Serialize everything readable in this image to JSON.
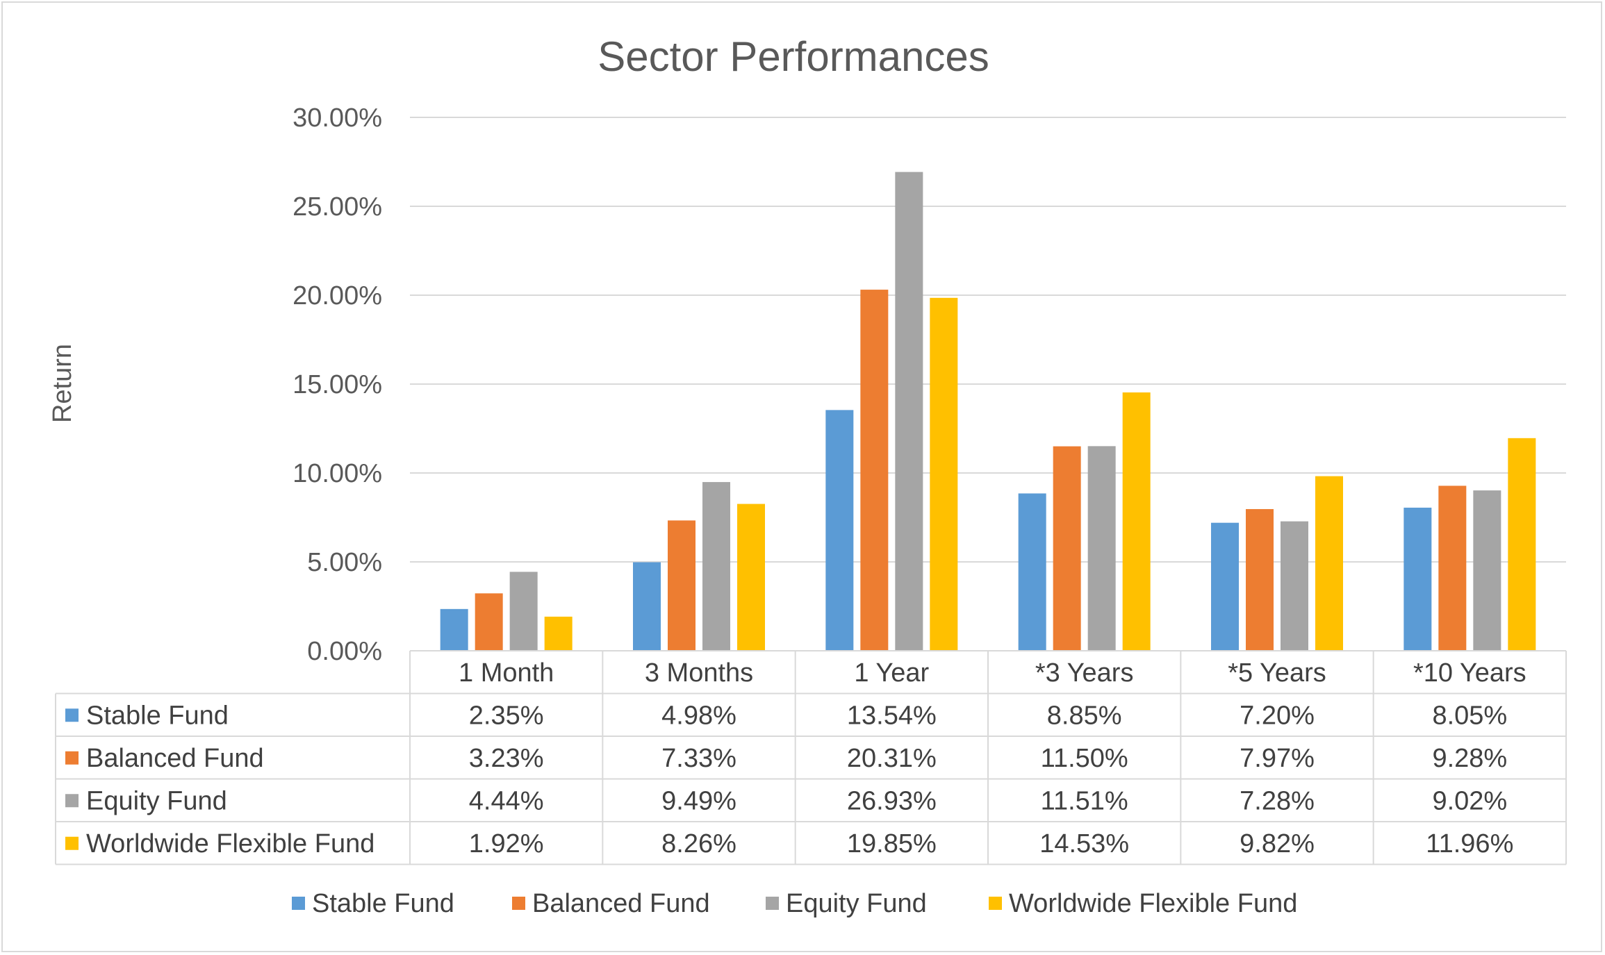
{
  "chart_data": {
    "type": "bar",
    "title": "Sector Performances",
    "xlabel": "",
    "ylabel": "Return",
    "ylim": [
      0,
      30
    ],
    "y_ticks": [
      "0.00%",
      "5.00%",
      "10.00%",
      "15.00%",
      "20.00%",
      "25.00%",
      "30.00%"
    ],
    "categories": [
      "1 Month",
      "3 Months",
      "1 Year",
      "*3 Years",
      "*5 Years",
      "*10 Years"
    ],
    "series": [
      {
        "name": "Stable Fund",
        "color": "#5b9bd5",
        "values": [
          2.35,
          4.98,
          13.54,
          8.85,
          7.2,
          8.05
        ],
        "labels": [
          "2.35%",
          "4.98%",
          "13.54%",
          "8.85%",
          "7.20%",
          "8.05%"
        ]
      },
      {
        "name": "Balanced Fund",
        "color": "#ed7d31",
        "values": [
          3.23,
          7.33,
          20.31,
          11.5,
          7.97,
          9.28
        ],
        "labels": [
          "3.23%",
          "7.33%",
          "20.31%",
          "11.50%",
          "7.97%",
          "9.28%"
        ]
      },
      {
        "name": "Equity Fund",
        "color": "#a5a5a5",
        "values": [
          4.44,
          9.49,
          26.93,
          11.51,
          7.28,
          9.02
        ],
        "labels": [
          "4.44%",
          "9.49%",
          "26.93%",
          "11.51%",
          "7.28%",
          "9.02%"
        ]
      },
      {
        "name": "Worldwide Flexible Fund",
        "color": "#ffc000",
        "values": [
          1.92,
          8.26,
          19.85,
          14.53,
          9.82,
          11.96
        ],
        "labels": [
          "1.92%",
          "8.26%",
          "19.85%",
          "14.53%",
          "9.82%",
          "11.96%"
        ]
      }
    ],
    "grid": true,
    "legend": "bottom",
    "data_table": true
  }
}
